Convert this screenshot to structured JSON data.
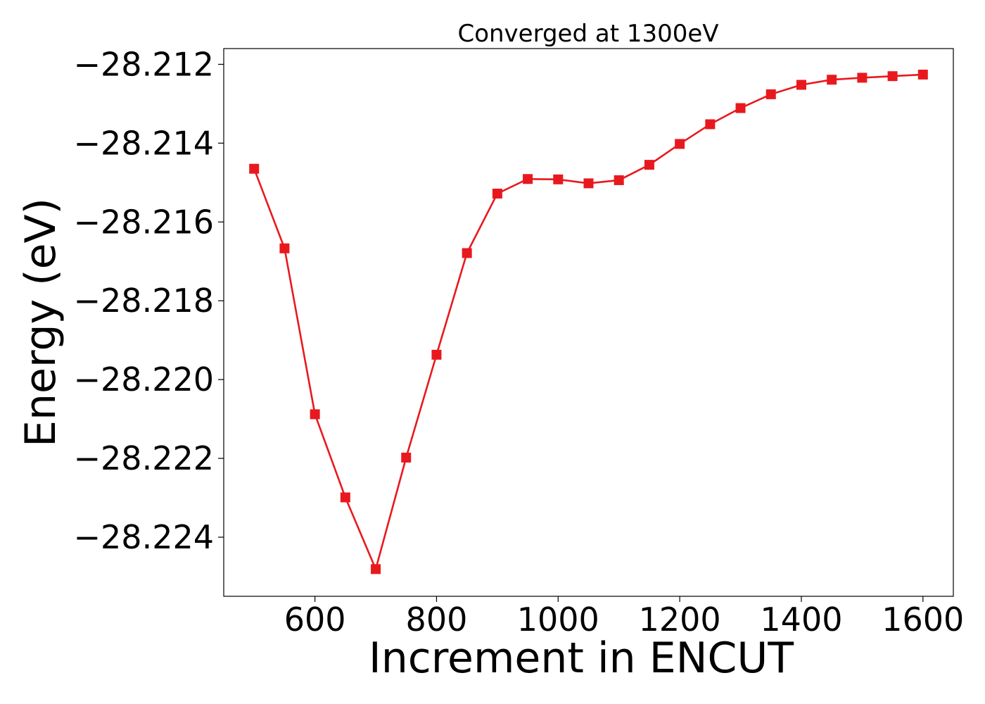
{
  "chart_data": {
    "type": "line",
    "title": "Converged at 1300eV",
    "xlabel": "Increment in ENCUT",
    "ylabel": "Energy (eV)",
    "xlim": [
      450,
      1650
    ],
    "ylim": [
      -28.2255,
      -28.2116
    ],
    "x_ticks": [
      600,
      800,
      1000,
      1200,
      1400,
      1600
    ],
    "y_ticks": [
      -28.212,
      -28.214,
      -28.216,
      -28.218,
      -28.22,
      -28.222,
      -28.224
    ],
    "y_tick_labels": [
      "−28.212",
      "−28.214",
      "−28.216",
      "−28.218",
      "−28.220",
      "−28.222",
      "−28.224"
    ],
    "grid": false,
    "series": [
      {
        "color": "#e8191e",
        "marker": "square",
        "x": [
          500,
          550,
          600,
          650,
          700,
          750,
          800,
          850,
          900,
          950,
          1000,
          1050,
          1100,
          1150,
          1200,
          1250,
          1300,
          1350,
          1400,
          1450,
          1500,
          1550,
          1600
        ],
        "y": [
          -28.21465,
          -28.21667,
          -28.22088,
          -28.22299,
          -28.22481,
          -28.22198,
          -28.21937,
          -28.21679,
          -28.21528,
          -28.21491,
          -28.21492,
          -28.21502,
          -28.21494,
          -28.21455,
          -28.21402,
          -28.21352,
          -28.21311,
          -28.21276,
          -28.21252,
          -28.21239,
          -28.21234,
          -28.2123,
          -28.21226
        ]
      }
    ]
  }
}
